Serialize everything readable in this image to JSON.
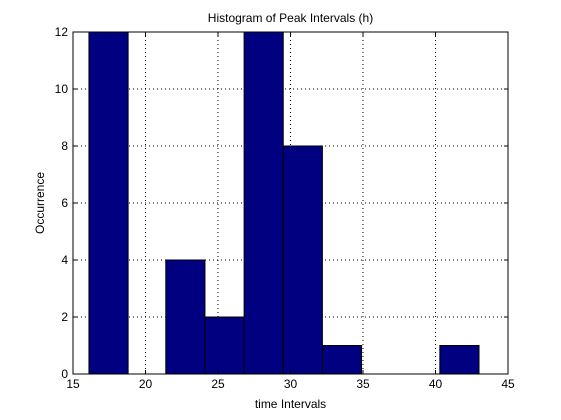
{
  "chart_data": {
    "type": "bar",
    "title": "Histogram of Peak Intervals (h)",
    "xlabel": "time Intervals",
    "ylabel": "Occurrence",
    "xlim": [
      15,
      45
    ],
    "ylim": [
      0,
      12
    ],
    "xticks": [
      15,
      20,
      25,
      30,
      35,
      40,
      45
    ],
    "yticks": [
      0,
      2,
      4,
      6,
      8,
      10,
      12
    ],
    "grid": true,
    "bar_color": "#000080",
    "bins": [
      {
        "x0": 16.1,
        "x1": 18.8,
        "value": 12
      },
      {
        "x0": 18.8,
        "x1": 21.4,
        "value": 0
      },
      {
        "x0": 21.4,
        "x1": 24.1,
        "value": 4
      },
      {
        "x0": 24.1,
        "x1": 26.8,
        "value": 2
      },
      {
        "x0": 26.8,
        "x1": 29.5,
        "value": 12
      },
      {
        "x0": 29.5,
        "x1": 32.2,
        "value": 8
      },
      {
        "x0": 32.2,
        "x1": 34.9,
        "value": 1
      },
      {
        "x0": 34.9,
        "x1": 37.6,
        "value": 0
      },
      {
        "x0": 37.6,
        "x1": 40.3,
        "value": 0
      },
      {
        "x0": 40.3,
        "x1": 43.0,
        "value": 1
      }
    ]
  }
}
